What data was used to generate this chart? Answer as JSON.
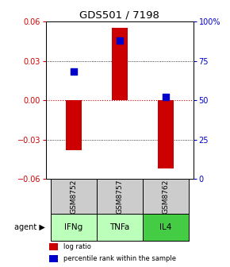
{
  "title": "GDS501 / 7198",
  "samples": [
    "GSM8752",
    "GSM8757",
    "GSM8762"
  ],
  "agents": [
    "IFNg",
    "TNFa",
    "IL4"
  ],
  "log_ratios": [
    -0.038,
    0.055,
    -0.052
  ],
  "percentile_ranks": [
    0.68,
    0.88,
    0.52
  ],
  "ylim_left": [
    -0.06,
    0.06
  ],
  "ylim_right": [
    0,
    1.0
  ],
  "yticks_left": [
    -0.06,
    -0.03,
    0,
    0.03,
    0.06
  ],
  "yticks_right": [
    0,
    0.25,
    0.5,
    0.75,
    1.0
  ],
  "ytick_labels_right": [
    "0",
    "25",
    "50",
    "75",
    "100%"
  ],
  "bar_color": "#cc0000",
  "dot_color": "#0000cc",
  "zero_line_color": "#cc0000",
  "sample_bg": "#cccccc",
  "agent_colors": [
    "#bbffbb",
    "#bbffbb",
    "#44cc44"
  ],
  "bar_width": 0.35,
  "dot_size": 28
}
